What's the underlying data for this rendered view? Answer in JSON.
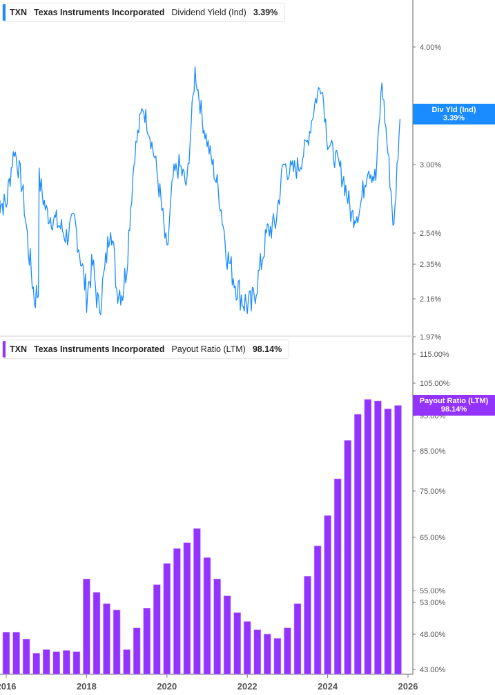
{
  "top_panel": {
    "legend": {
      "ticker": "TXN",
      "company": "Texas Instruments Incorporated",
      "metric": "Dividend Yield (Ind)",
      "value": "3.39%"
    },
    "tag": {
      "label": "Div Yld (Ind)",
      "value": "3.39%"
    },
    "color": "#1a8cff"
  },
  "bottom_panel": {
    "legend": {
      "ticker": "TXN",
      "company": "Texas Instruments Incorporated",
      "metric": "Payout Ratio (LTM)",
      "value": "98.14%"
    },
    "tag": {
      "label": "Payout Ratio (LTM)",
      "value": "98.14%"
    },
    "color": "#9333ff"
  },
  "chart_data": [
    {
      "type": "line",
      "title": "TXN Texas Instruments Incorporated Dividend Yield (Ind) 3.39%",
      "ylabel": "Dividend Yield (%)",
      "y_scale": "log",
      "y_ticks": [
        "4.00%",
        "3.00%",
        "2.54%",
        "2.35%",
        "2.16%",
        "1.97%"
      ],
      "ylim": [
        1.97,
        4.3
      ],
      "x_ticks": [
        "2016",
        "2018",
        "2020",
        "2022",
        "2024",
        "2026"
      ],
      "series": [
        {
          "name": "Dividend Yield (Ind)",
          "color": "#1a8cff",
          "last_value": 3.39,
          "x": [
            2015.75,
            2016.0,
            2016.2,
            2016.4,
            2016.55,
            2016.7,
            2016.8,
            2016.82,
            2017.0,
            2017.3,
            2017.5,
            2017.7,
            2017.9,
            2018.0,
            2018.15,
            2018.3,
            2018.45,
            2018.6,
            2018.75,
            2018.9,
            2019.0,
            2019.2,
            2019.4,
            2019.55,
            2019.7,
            2019.85,
            2020.0,
            2020.15,
            2020.3,
            2020.5,
            2020.7,
            2020.9,
            2021.1,
            2021.3,
            2021.5,
            2021.7,
            2021.9,
            2022.1,
            2022.3,
            2022.5,
            2022.7,
            2022.9,
            2023.1,
            2023.3,
            2023.5,
            2023.7,
            2023.85,
            2024.0,
            2024.2,
            2024.4,
            2024.6,
            2024.8,
            2025.0,
            2025.2,
            2025.35,
            2025.5,
            2025.65,
            2025.8
          ],
          "values": [
            2.75,
            2.73,
            3.13,
            2.85,
            2.45,
            2.17,
            2.2,
            2.9,
            2.68,
            2.6,
            2.52,
            2.62,
            2.32,
            2.18,
            2.35,
            2.1,
            2.3,
            2.62,
            2.22,
            2.2,
            2.35,
            3.1,
            3.5,
            3.3,
            3.05,
            2.75,
            2.4,
            2.9,
            3.0,
            2.85,
            3.8,
            3.35,
            3.05,
            2.8,
            2.4,
            2.25,
            2.15,
            2.12,
            2.3,
            2.55,
            2.6,
            3.0,
            2.95,
            3.0,
            3.2,
            3.55,
            3.7,
            3.2,
            3.05,
            2.9,
            2.65,
            2.7,
            3.0,
            2.9,
            3.7,
            3.1,
            2.55,
            3.39
          ]
        }
      ]
    },
    {
      "type": "bar",
      "title": "TXN Texas Instruments Incorporated Payout Ratio (LTM) 98.14%",
      "ylabel": "Payout Ratio (%)",
      "y_scale": "log",
      "y_ticks": [
        "115.00%",
        "105.00%",
        "95.00%",
        "85.00%",
        "75.00%",
        "65.00%",
        "55.00%",
        "53.00%",
        "48.00%",
        "43.00%"
      ],
      "ylim": [
        42,
        118
      ],
      "x_ticks": [
        "2016",
        "2018",
        "2020",
        "2022",
        "2024",
        "2026"
      ],
      "grid": false,
      "series": [
        {
          "name": "Payout Ratio (LTM)",
          "color": "#9333ff",
          "last_value": 98.14,
          "x": [
            "2015 Q4",
            "2016 Q1",
            "2016 Q2",
            "2016 Q3",
            "2016 Q4",
            "2017 Q1",
            "2017 Q2",
            "2017 Q3",
            "2017 Q4",
            "2018 Q1",
            "2018 Q2",
            "2018 Q3",
            "2018 Q4",
            "2019 Q1",
            "2019 Q2",
            "2019 Q3",
            "2019 Q4",
            "2020 Q1",
            "2020 Q2",
            "2020 Q3",
            "2020 Q4",
            "2021 Q1",
            "2021 Q2",
            "2021 Q3",
            "2021 Q4",
            "2022 Q1",
            "2022 Q2",
            "2022 Q3",
            "2022 Q4",
            "2023 Q1",
            "2023 Q2",
            "2023 Q3",
            "2023 Q4",
            "2024 Q1",
            "2024 Q2",
            "2024 Q3",
            "2024 Q4",
            "2025 Q1",
            "2025 Q2",
            "2025 Q3"
          ],
          "values": [
            48.3,
            48.3,
            47.3,
            45.3,
            45.8,
            45.5,
            45.7,
            45.5,
            57.2,
            54.7,
            52.8,
            51.8,
            45.8,
            49.0,
            52.1,
            56.1,
            60.1,
            62.9,
            64.0,
            66.9,
            61.2,
            57.2,
            54.1,
            51.4,
            50.0,
            48.7,
            48.0,
            47.4,
            49.0,
            52.8,
            57.7,
            63.4,
            69.7,
            78.0,
            88.0,
            95.4,
            100.0,
            99.5,
            97.1,
            98.1
          ]
        }
      ]
    }
  ]
}
